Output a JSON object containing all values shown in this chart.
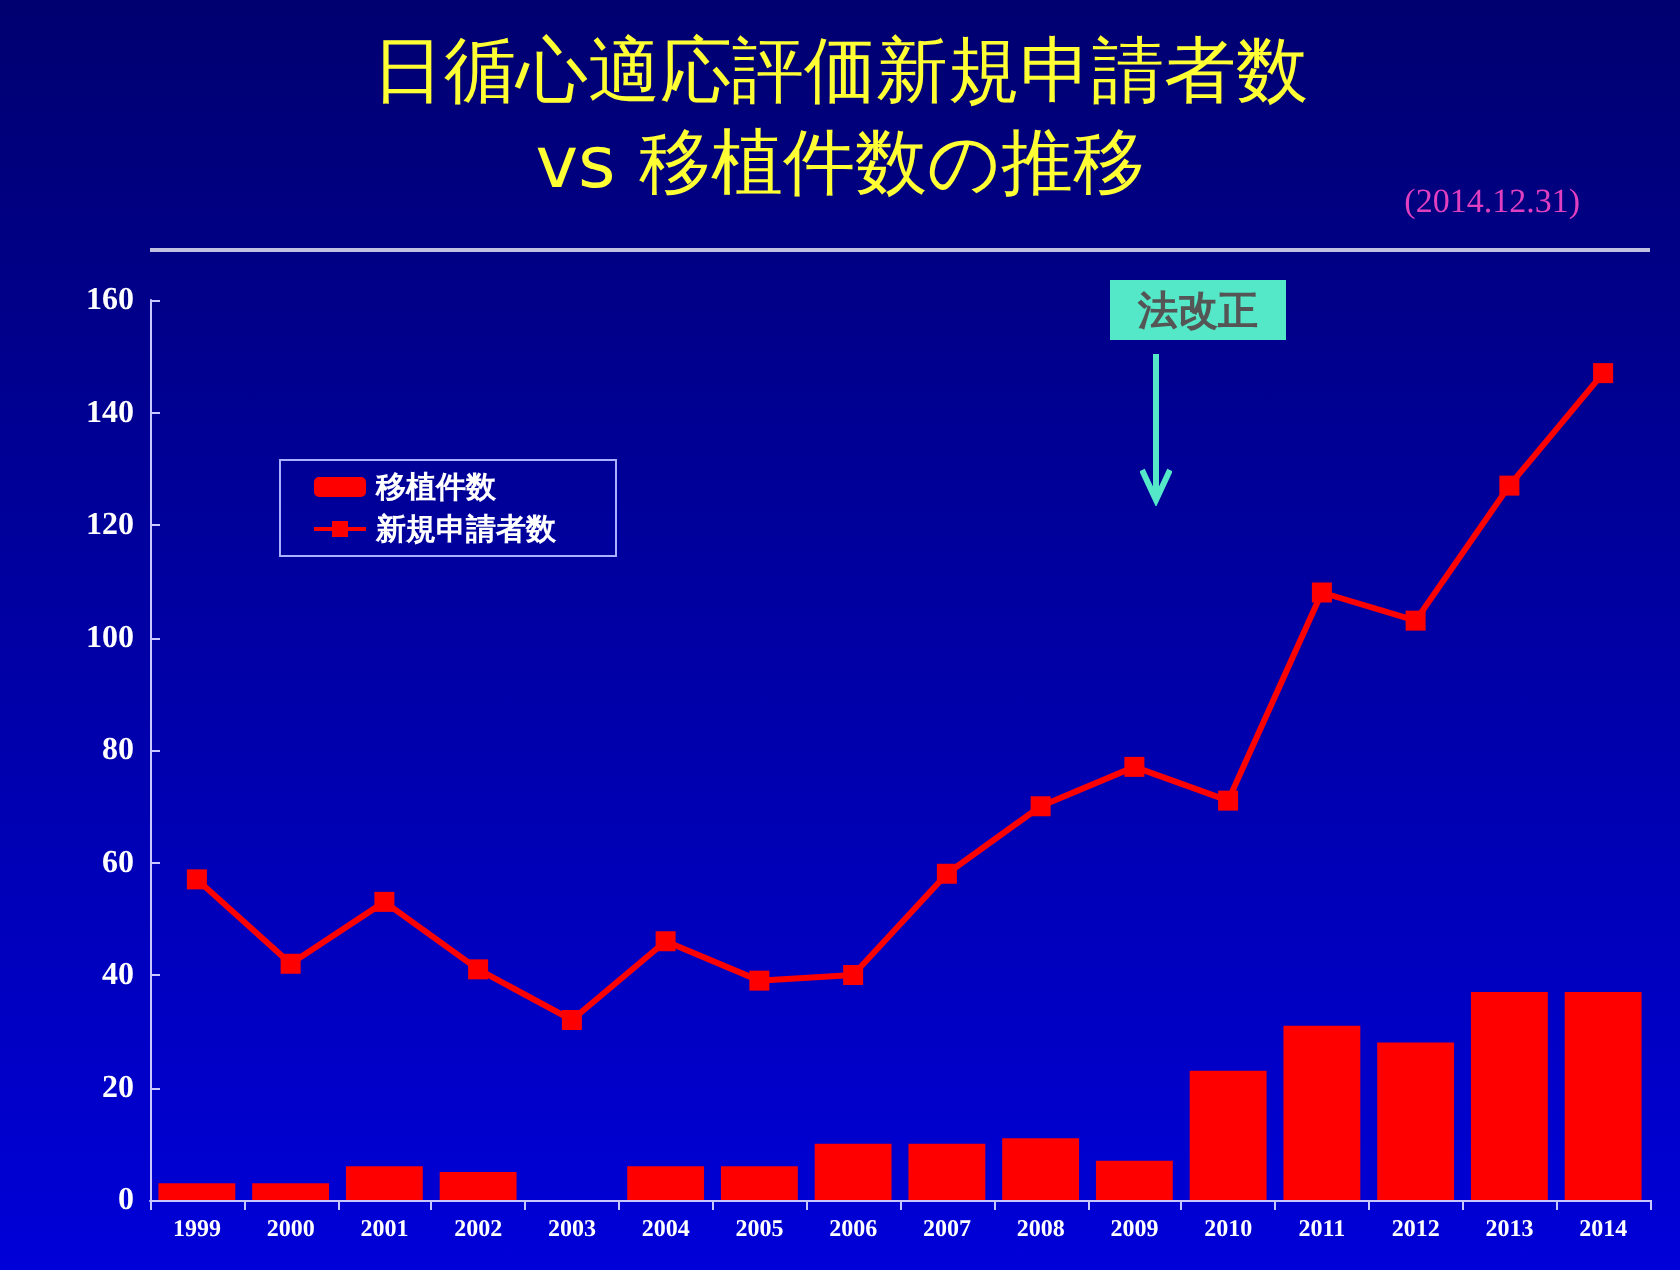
{
  "chart_data": {
    "type": "bar",
    "title": "日循心適応評価新規申請者数\nvs 移植件数の推移",
    "categories": [
      "1999",
      "2000",
      "2001",
      "2002",
      "2003",
      "2004",
      "2005",
      "2006",
      "2007",
      "2008",
      "2009",
      "2010",
      "2011",
      "2012",
      "2013",
      "2014"
    ],
    "series": [
      {
        "name": "移植件数",
        "color": "#ff0000",
        "values": [
          3,
          3,
          6,
          5,
          0,
          6,
          6,
          10,
          10,
          11,
          7,
          23,
          31,
          28,
          37,
          37
        ]
      },
      {
        "name": "新規申請者数",
        "type": "line",
        "color": "#ff0000",
        "marker": "square",
        "values": [
          57,
          42,
          53,
          41,
          32,
          46,
          39,
          40,
          58,
          70,
          77,
          71,
          108,
          103,
          127,
          147
        ]
      }
    ],
    "ylim": [
      0,
      160
    ],
    "yticks": [
      0,
      20,
      40,
      60,
      80,
      100,
      120,
      140,
      160
    ],
    "grid": false,
    "legend": "top left",
    "annotations": [
      "(2014.12.31)",
      "法改正"
    ]
  }
}
